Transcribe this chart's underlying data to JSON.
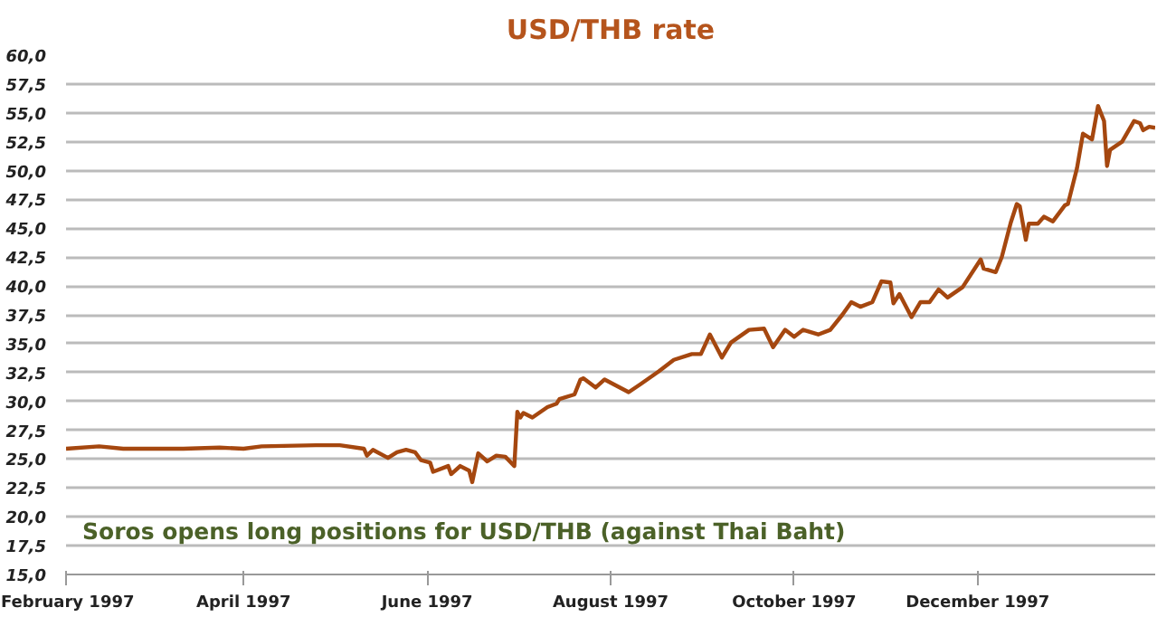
{
  "chart_data": {
    "type": "line",
    "title": "USD/THB rate",
    "x": [
      "1997-02-01",
      "1997-02-12",
      "1997-02-20",
      "1997-03-12",
      "1997-03-24",
      "1997-04-01",
      "1997-04-07",
      "1997-04-25",
      "1997-05-03",
      "1997-05-11",
      "1997-05-12",
      "1997-05-14",
      "1997-05-19",
      "1997-05-22",
      "1997-05-25",
      "1997-05-28",
      "1997-05-30",
      "1997-06-02",
      "1997-06-03",
      "1997-06-08",
      "1997-06-09",
      "1997-06-12",
      "1997-06-15",
      "1997-06-16",
      "1997-06-18",
      "1997-06-21",
      "1997-06-24",
      "1997-06-27",
      "1997-06-30",
      "1997-07-01",
      "1997-07-02",
      "1997-07-03",
      "1997-07-06",
      "1997-07-11",
      "1997-07-14",
      "1997-07-15",
      "1997-07-20",
      "1997-07-22",
      "1997-07-23",
      "1997-07-27",
      "1997-07-30",
      "1997-08-07",
      "1997-08-11",
      "1997-08-17",
      "1997-08-22",
      "1997-08-28",
      "1997-08-31",
      "1997-09-03",
      "1997-09-07",
      "1997-09-10",
      "1997-09-16",
      "1997-09-21",
      "1997-09-24",
      "1997-09-28",
      "1997-10-01",
      "1997-10-04",
      "1997-10-09",
      "1997-10-13",
      "1997-10-17",
      "1997-10-20",
      "1997-10-23",
      "1997-10-27",
      "1997-10-30",
      "1997-11-02",
      "1997-11-03",
      "1997-11-05",
      "1997-11-09",
      "1997-11-12",
      "1997-11-15",
      "1997-11-18",
      "1997-11-21",
      "1997-11-26",
      "1997-12-02",
      "1997-12-03",
      "1997-12-07",
      "1997-12-09",
      "1997-12-12",
      "1997-12-14",
      "1997-12-15",
      "1997-12-17",
      "1997-12-18",
      "1997-12-21",
      "1997-12-23",
      "1997-12-26",
      "1997-12-30",
      "1997-12-31",
      "1998-01-03",
      "1998-01-05",
      "1998-01-08",
      "1998-01-10",
      "1998-01-12",
      "1998-01-13",
      "1998-01-14",
      "1998-01-18",
      "1998-01-22",
      "1998-01-24",
      "1998-01-25",
      "1998-01-27",
      "1998-01-29"
    ],
    "series": [
      {
        "color": "#a5470f",
        "values": [
          25.9,
          26.1,
          25.9,
          25.9,
          26.0,
          25.9,
          26.1,
          26.2,
          26.2,
          25.9,
          25.3,
          25.8,
          25.1,
          25.6,
          25.8,
          25.6,
          24.9,
          24.7,
          23.9,
          24.4,
          23.7,
          24.4,
          24.0,
          23.0,
          25.5,
          24.8,
          25.3,
          25.2,
          24.4,
          29.1,
          28.6,
          29.0,
          28.6,
          29.5,
          29.8,
          30.2,
          30.6,
          31.9,
          32.0,
          31.2,
          31.9,
          30.8,
          31.5,
          32.6,
          33.6,
          34.1,
          34.1,
          35.8,
          33.8,
          35.1,
          36.2,
          36.3,
          34.7,
          36.2,
          35.6,
          36.2,
          35.8,
          36.2,
          37.5,
          38.6,
          38.2,
          38.6,
          40.4,
          40.3,
          38.5,
          39.3,
          37.3,
          38.6,
          38.6,
          39.7,
          39.0,
          39.9,
          42.3,
          41.5,
          41.2,
          42.5,
          45.5,
          47.1,
          46.9,
          44.0,
          45.4,
          45.4,
          46.0,
          45.6,
          47.0,
          47.1,
          50.2,
          53.2,
          52.7,
          55.6,
          54.3,
          50.4,
          51.8,
          52.5,
          54.3,
          54.1,
          53.5,
          53.8,
          53.7
        ]
      }
    ],
    "xlim": [
      "1997-02-01",
      "1998-01-29"
    ],
    "xticks": [
      {
        "value": "1997-02-01",
        "label": "February 1997"
      },
      {
        "value": "1997-04-01",
        "label": "April 1997"
      },
      {
        "value": "1997-06-01",
        "label": "June 1997"
      },
      {
        "value": "1997-08-01",
        "label": "August 1997"
      },
      {
        "value": "1997-10-01",
        "label": "October 1997"
      },
      {
        "value": "1997-12-01",
        "label": "December 1997"
      }
    ],
    "ylim": [
      15,
      60
    ],
    "yticks": [
      {
        "value": 15,
        "label": "15,0"
      },
      {
        "value": 17.5,
        "label": "17,5"
      },
      {
        "value": 20,
        "label": "20,0"
      },
      {
        "value": 22.5,
        "label": "22,5"
      },
      {
        "value": 25,
        "label": "25,0"
      },
      {
        "value": 27.5,
        "label": "27,5"
      },
      {
        "value": 30,
        "label": "30,0"
      },
      {
        "value": 32.5,
        "label": "32,5"
      },
      {
        "value": 35,
        "label": "35,0"
      },
      {
        "value": 37.5,
        "label": "37,5"
      },
      {
        "value": 40,
        "label": "40,0"
      },
      {
        "value": 42.5,
        "label": "42,5"
      },
      {
        "value": 45,
        "label": "45,0"
      },
      {
        "value": 47.5,
        "label": "47,5"
      },
      {
        "value": 50,
        "label": "50,0"
      },
      {
        "value": 52.5,
        "label": "52,5"
      },
      {
        "value": 55,
        "label": "55,0"
      },
      {
        "value": 57.5,
        "label": "57,5"
      },
      {
        "value": 60,
        "label": "60,0"
      }
    ],
    "grid": "y",
    "annotations": [
      "Soros opens long positions for USD/THB (against Thai Baht)"
    ]
  }
}
